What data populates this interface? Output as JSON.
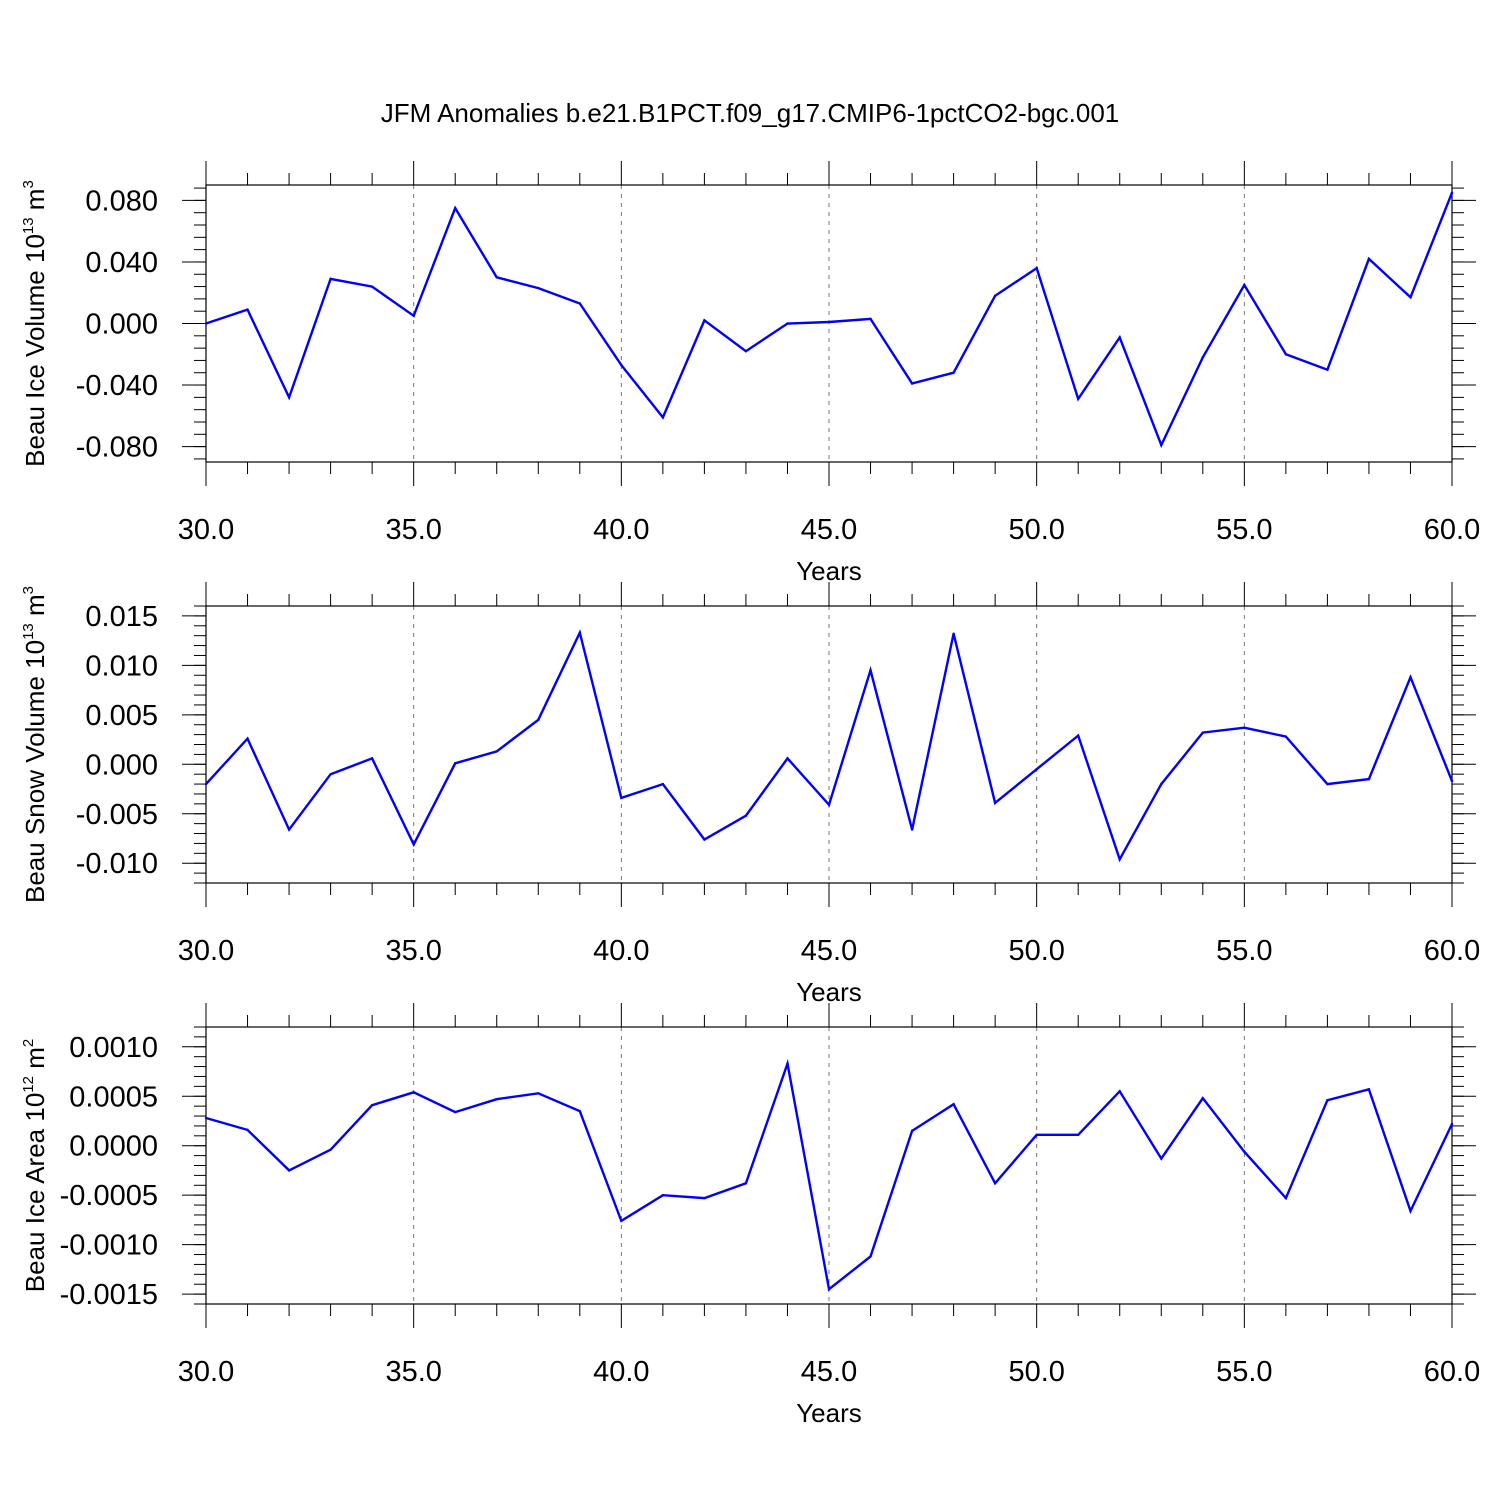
{
  "title": "JFM Anomalies b.e21.B1PCT.f09_g17.CMIP6-1pctCO2-bgc.001",
  "chart_data": [
    {
      "type": "line",
      "xlabel": "Years",
      "ylabel_text": "Beau Ice Volume 10",
      "ylabel_exp": "13",
      "ylabel_unit": " m",
      "ylabel_unit_exp": "3",
      "xlim": [
        30,
        60
      ],
      "ylim": [
        -0.09,
        0.09
      ],
      "xticks": [
        "30.0",
        "35.0",
        "40.0",
        "45.0",
        "50.0",
        "55.0",
        "60.0"
      ],
      "yticks": [
        {
          "value": 0.08,
          "label": "0.080"
        },
        {
          "value": 0.04,
          "label": "0.040"
        },
        {
          "value": 0.0,
          "label": "0.000"
        },
        {
          "value": -0.04,
          "label": "-0.040"
        },
        {
          "value": -0.08,
          "label": "-0.080"
        }
      ],
      "grid": "vertical dashed at major x ticks",
      "line_color": "#0000ff",
      "x": [
        30,
        31,
        32,
        33,
        34,
        35,
        36,
        37,
        38,
        39,
        40,
        41,
        42,
        43,
        44,
        45,
        46,
        47,
        48,
        49,
        50,
        51,
        52,
        53,
        54,
        55,
        56,
        57,
        58,
        59,
        60
      ],
      "values": [
        0.0,
        0.009,
        -0.048,
        0.029,
        0.024,
        0.005,
        0.075,
        0.03,
        0.023,
        0.013,
        -0.027,
        -0.061,
        0.002,
        -0.018,
        0.0,
        0.001,
        0.003,
        -0.039,
        -0.032,
        0.018,
        0.036,
        -0.049,
        -0.009,
        -0.079,
        -0.022,
        0.025,
        -0.02,
        -0.03,
        0.042,
        0.017,
        0.085
      ]
    },
    {
      "type": "line",
      "xlabel": "Years",
      "ylabel_text": "Beau Snow Volume 10",
      "ylabel_exp": "13",
      "ylabel_unit": " m",
      "ylabel_unit_exp": "3",
      "xlim": [
        30,
        60
      ],
      "ylim": [
        -0.012,
        0.016
      ],
      "xticks": [
        "30.0",
        "35.0",
        "40.0",
        "45.0",
        "50.0",
        "55.0",
        "60.0"
      ],
      "yticks": [
        {
          "value": 0.015,
          "label": "0.015"
        },
        {
          "value": 0.01,
          "label": "0.010"
        },
        {
          "value": 0.005,
          "label": "0.005"
        },
        {
          "value": 0.0,
          "label": "0.000"
        },
        {
          "value": -0.005,
          "label": "-0.005"
        },
        {
          "value": -0.01,
          "label": "-0.010"
        }
      ],
      "grid": "vertical dashed at major x ticks",
      "line_color": "#0000ff",
      "x": [
        30,
        31,
        32,
        33,
        34,
        35,
        36,
        37,
        38,
        39,
        40,
        41,
        42,
        43,
        44,
        45,
        46,
        47,
        48,
        49,
        50,
        51,
        52,
        53,
        54,
        55,
        56,
        57,
        58,
        59,
        60
      ],
      "values": [
        -0.002,
        0.0026,
        -0.0066,
        -0.001,
        0.0006,
        -0.0081,
        0.0001,
        0.0013,
        0.0045,
        0.0133,
        -0.0034,
        -0.002,
        -0.0076,
        -0.0052,
        0.0006,
        -0.0041,
        0.0095,
        -0.0066,
        0.0132,
        -0.0039,
        -0.0005,
        0.0029,
        -0.0096,
        -0.002,
        0.0032,
        0.0037,
        0.0028,
        -0.002,
        -0.0015,
        0.0088,
        -0.0017
      ]
    },
    {
      "type": "line",
      "xlabel": "Years",
      "ylabel_text": "Beau Ice Area 10",
      "ylabel_exp": "12",
      "ylabel_unit": " m",
      "ylabel_unit_exp": "2",
      "xlim": [
        30,
        60
      ],
      "ylim": [
        -0.0016,
        0.0012
      ],
      "xticks": [
        "30.0",
        "35.0",
        "40.0",
        "45.0",
        "50.0",
        "55.0",
        "60.0"
      ],
      "yticks": [
        {
          "value": 0.001,
          "label": "0.0010"
        },
        {
          "value": 0.0005,
          "label": "0.0005"
        },
        {
          "value": 0.0,
          "label": "0.0000"
        },
        {
          "value": -0.0005,
          "label": "-0.0005"
        },
        {
          "value": -0.001,
          "label": "-0.0010"
        },
        {
          "value": -0.0015,
          "label": "-0.0015"
        }
      ],
      "grid": "vertical dashed at major x ticks",
      "line_color": "#0000ff",
      "x": [
        30,
        31,
        32,
        33,
        34,
        35,
        36,
        37,
        38,
        39,
        40,
        41,
        42,
        43,
        44,
        45,
        46,
        47,
        48,
        49,
        50,
        51,
        52,
        53,
        54,
        55,
        56,
        57,
        58,
        59,
        60
      ],
      "values": [
        0.00028,
        0.00016,
        -0.00025,
        -4e-05,
        0.00041,
        0.00054,
        0.00034,
        0.00047,
        0.00053,
        0.00035,
        -0.00076,
        -0.0005,
        -0.00053,
        -0.00038,
        0.00083,
        -0.00145,
        -0.00112,
        0.00015,
        0.00042,
        -0.00038,
        0.00011,
        0.00011,
        0.00055,
        -0.00013,
        0.00048,
        -6e-05,
        -0.00053,
        0.00046,
        0.00057,
        -0.00066,
        0.00022
      ]
    }
  ]
}
